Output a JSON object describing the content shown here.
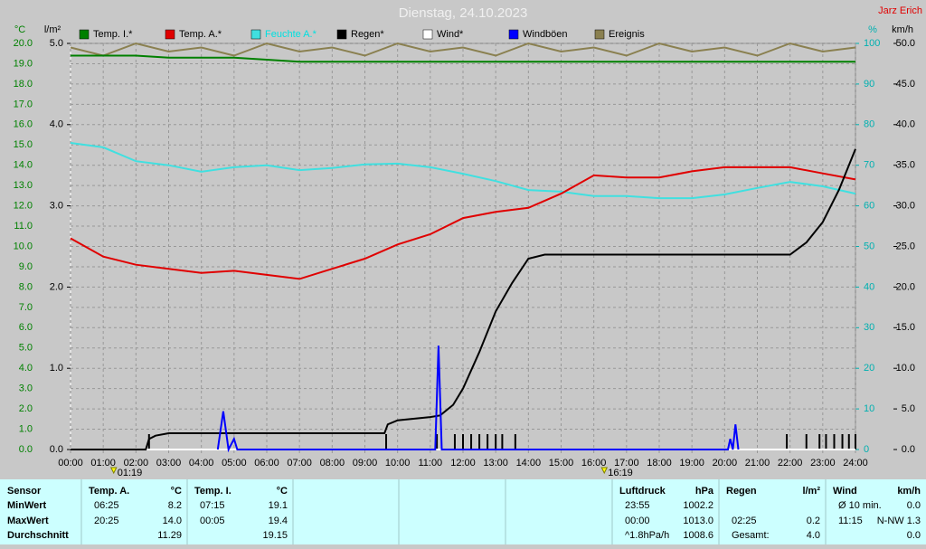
{
  "chart_data": {
    "type": "line",
    "title": "Dienstag, 24.10.2023",
    "author": "Jarz Erich",
    "y_label": "°C",
    "y2_label": "l/m²",
    "y3_label": "%",
    "y4_label": "km/h",
    "grid": true,
    "xlim": [
      0,
      24
    ],
    "xticks": [
      {
        "value": 0,
        "label": "00:00"
      },
      {
        "value": 1,
        "label": "01:00"
      },
      {
        "value": 2,
        "label": "02:00"
      },
      {
        "value": 3,
        "label": "03:00"
      },
      {
        "value": 4,
        "label": "04:00"
      },
      {
        "value": 5,
        "label": "05:00"
      },
      {
        "value": 6,
        "label": "06:00"
      },
      {
        "value": 7,
        "label": "07:00"
      },
      {
        "value": 8,
        "label": "08:00"
      },
      {
        "value": 9,
        "label": "09:00"
      },
      {
        "value": 10,
        "label": "10:00"
      },
      {
        "value": 11,
        "label": "11:00"
      },
      {
        "value": 12,
        "label": "12:00"
      },
      {
        "value": 13,
        "label": "13:00"
      },
      {
        "value": 14,
        "label": "14:00"
      },
      {
        "value": 15,
        "label": "15:00"
      },
      {
        "value": 16,
        "label": "16:00"
      },
      {
        "value": 17,
        "label": "17:00"
      },
      {
        "value": 18,
        "label": "18:00"
      },
      {
        "value": 19,
        "label": "19:00"
      },
      {
        "value": 20,
        "label": "20:00"
      },
      {
        "value": 21,
        "label": "21:00"
      },
      {
        "value": 22,
        "label": "22:00"
      },
      {
        "value": 23,
        "label": "23:00"
      },
      {
        "value": 24,
        "label": "24:00"
      }
    ],
    "ylim": [
      0,
      20
    ],
    "yticks": [
      {
        "value": 0,
        "label": "0.0"
      },
      {
        "value": 1,
        "label": "1.0"
      },
      {
        "value": 2,
        "label": "2.0"
      },
      {
        "value": 3,
        "label": "3.0"
      },
      {
        "value": 4,
        "label": "4.0"
      },
      {
        "value": 5,
        "label": "5.0"
      },
      {
        "value": 6,
        "label": "6.0"
      },
      {
        "value": 7,
        "label": "7.0"
      },
      {
        "value": 8,
        "label": "8.0"
      },
      {
        "value": 9,
        "label": "9.0"
      },
      {
        "value": 10,
        "label": "10.0"
      },
      {
        "value": 11,
        "label": "11.0"
      },
      {
        "value": 12,
        "label": "12.0"
      },
      {
        "value": 13,
        "label": "13.0"
      },
      {
        "value": 14,
        "label": "14.0"
      },
      {
        "value": 15,
        "label": "15.0"
      },
      {
        "value": 16,
        "label": "16.0"
      },
      {
        "value": 17,
        "label": "17.0"
      },
      {
        "value": 18,
        "label": "18.0"
      },
      {
        "value": 19,
        "label": "19.0"
      },
      {
        "value": 20,
        "label": "20.0"
      }
    ],
    "y2lim": [
      0,
      5
    ],
    "y2ticks": [
      {
        "value": 0,
        "label": "0.0"
      },
      {
        "value": 1,
        "label": "1.0"
      },
      {
        "value": 2,
        "label": "2.0"
      },
      {
        "value": 3,
        "label": "3.0"
      },
      {
        "value": 4,
        "label": "4.0"
      },
      {
        "value": 5,
        "label": "5.0"
      }
    ],
    "y3lim": [
      0,
      100
    ],
    "y3ticks": [
      0,
      10,
      20,
      30,
      40,
      50,
      60,
      70,
      80,
      90,
      100
    ],
    "y4lim": [
      0,
      50
    ],
    "y4ticks": [
      {
        "value": 0,
        "label": "0.0"
      },
      {
        "value": 5,
        "label": "5.0"
      },
      {
        "value": 10,
        "label": "10.0"
      },
      {
        "value": 15,
        "label": "15.0"
      },
      {
        "value": 20,
        "label": "20.0"
      },
      {
        "value": 25,
        "label": "25.0"
      },
      {
        "value": 30,
        "label": "30.0"
      },
      {
        "value": 35,
        "label": "35.0"
      },
      {
        "value": 40,
        "label": "40.0"
      },
      {
        "value": 45,
        "label": "45.0"
      },
      {
        "value": 50,
        "label": "50.0"
      }
    ],
    "x": [
      0,
      1,
      2,
      3,
      4,
      5,
      6,
      7,
      8,
      9,
      10,
      11,
      12,
      13,
      14,
      15,
      16,
      17,
      18,
      19,
      20,
      21,
      22,
      23,
      24
    ],
    "series": [
      {
        "name": "Temp. I.*",
        "color": "#008000",
        "axis": "y",
        "values": [
          19.4,
          19.4,
          19.4,
          19.3,
          19.3,
          19.3,
          19.2,
          19.1,
          19.1,
          19.1,
          19.1,
          19.1,
          19.1,
          19.1,
          19.1,
          19.1,
          19.1,
          19.1,
          19.1,
          19.1,
          19.1,
          19.1,
          19.1,
          19.1,
          19.1
        ]
      },
      {
        "name": "Temp. A.*",
        "color": "#e00000",
        "axis": "y",
        "values": [
          10.4,
          9.5,
          9.1,
          8.9,
          8.7,
          8.8,
          8.6,
          8.4,
          8.9,
          9.4,
          10.1,
          10.6,
          11.4,
          11.7,
          11.9,
          12.6,
          13.5,
          13.4,
          13.4,
          13.7,
          13.9,
          13.9,
          13.9,
          13.6,
          13.3
        ]
      },
      {
        "name": "Feuchte A.*",
        "color": "#40e0e0",
        "axis": "y3",
        "values": [
          75.5,
          74.4,
          71,
          70,
          68.4,
          69.5,
          70,
          68.8,
          69.3,
          70.2,
          70.4,
          69.5,
          67.9,
          66.1,
          63.9,
          63.5,
          62.4,
          62.4,
          61.9,
          61.9,
          62.8,
          64.4,
          65.9,
          64.8,
          63
        ]
      },
      {
        "name": "Regen*",
        "color": "#000000",
        "axis": "y2",
        "x": [
          0,
          2.3,
          2.4,
          2.6,
          3,
          4,
          9.6,
          9.7,
          10,
          11,
          11.3,
          11.7,
          12,
          12.5,
          13,
          13.5,
          14,
          14.5,
          15,
          22,
          22.5,
          23,
          23.5,
          24
        ],
        "values": [
          0,
          0,
          0.13,
          0.17,
          0.2,
          0.2,
          0.2,
          0.31,
          0.36,
          0.4,
          0.42,
          0.55,
          0.75,
          1.2,
          1.7,
          2.05,
          2.35,
          2.4,
          2.4,
          2.4,
          2.55,
          2.8,
          3.2,
          3.7
        ]
      },
      {
        "name": "Wind*",
        "color": "#ffffff",
        "axis": "y4",
        "values": [
          0,
          0,
          0,
          0,
          0,
          0,
          0,
          0,
          0,
          0,
          0,
          0,
          0,
          0,
          0,
          0,
          0,
          0,
          0,
          0,
          0,
          0,
          0,
          0,
          0
        ]
      },
      {
        "name": "Windböen",
        "color": "#0000ff",
        "axis": "y4",
        "x": [
          4.5,
          4.67,
          4.83,
          5.0,
          5.1,
          11.15,
          11.25,
          11.35,
          20.1,
          20.17,
          20.25,
          20.33,
          20.42
        ],
        "values": [
          0,
          4.7,
          0,
          1.3,
          0,
          0,
          12.8,
          0,
          0,
          1.3,
          0,
          3.1,
          0
        ]
      },
      {
        "name": "Ereignis",
        "color": "#8a8050",
        "axis": "y3",
        "values": [
          99,
          97,
          100,
          98,
          99,
          97,
          100,
          98,
          99,
          97,
          100,
          98,
          99,
          97,
          100,
          98,
          99,
          97,
          100,
          98,
          99,
          97,
          100,
          98,
          99
        ]
      }
    ],
    "rain_events": [
      2.4,
      9.65,
      11.2,
      11.75,
      12.0,
      12.25,
      12.5,
      12.75,
      13.0,
      13.2,
      13.6,
      21.9,
      22.5,
      22.9,
      23.1,
      23.35,
      23.6,
      23.8,
      24
    ],
    "sun_events": [
      {
        "value": 1.32,
        "label": "01:19"
      },
      {
        "value": 16.32,
        "label": "16:19"
      }
    ]
  },
  "table": {
    "columns": [
      {
        "header": [
          "Sensor"
        ],
        "rows": [
          [
            "MinWert"
          ],
          [
            "MaxWert"
          ],
          [
            "Durchschnitt"
          ]
        ]
      },
      {
        "header": [
          "Temp. A.",
          "°C"
        ],
        "rows": [
          [
            "06:25",
            "8.2"
          ],
          [
            "20:25",
            "14.0"
          ],
          [
            null,
            "11.29"
          ]
        ]
      },
      {
        "header": [
          "Temp. I.",
          "°C"
        ],
        "rows": [
          [
            "07:15",
            "19.1"
          ],
          [
            "00:05",
            "19.4"
          ],
          [
            null,
            "19.15"
          ]
        ]
      },
      {
        "header": [
          "Luftdruck",
          "hPa"
        ],
        "rows": [
          [
            "23:55",
            "1002.2"
          ],
          [
            "00:00",
            "1013.0"
          ],
          [
            "^1.8hPa/h",
            "1008.6"
          ]
        ]
      },
      {
        "header": [
          "Regen",
          "l/m²"
        ],
        "rows": [
          [
            null,
            null
          ],
          [
            "02:25",
            "0.2"
          ],
          [
            "Gesamt:",
            "4.0"
          ]
        ]
      },
      {
        "header": [
          "Wind",
          "km/h"
        ],
        "rows": [
          [
            "Ø 10 min.",
            "0.0"
          ],
          [
            "11:15",
            "N-NW 1.3"
          ],
          [
            null,
            "0.0"
          ]
        ]
      }
    ]
  }
}
